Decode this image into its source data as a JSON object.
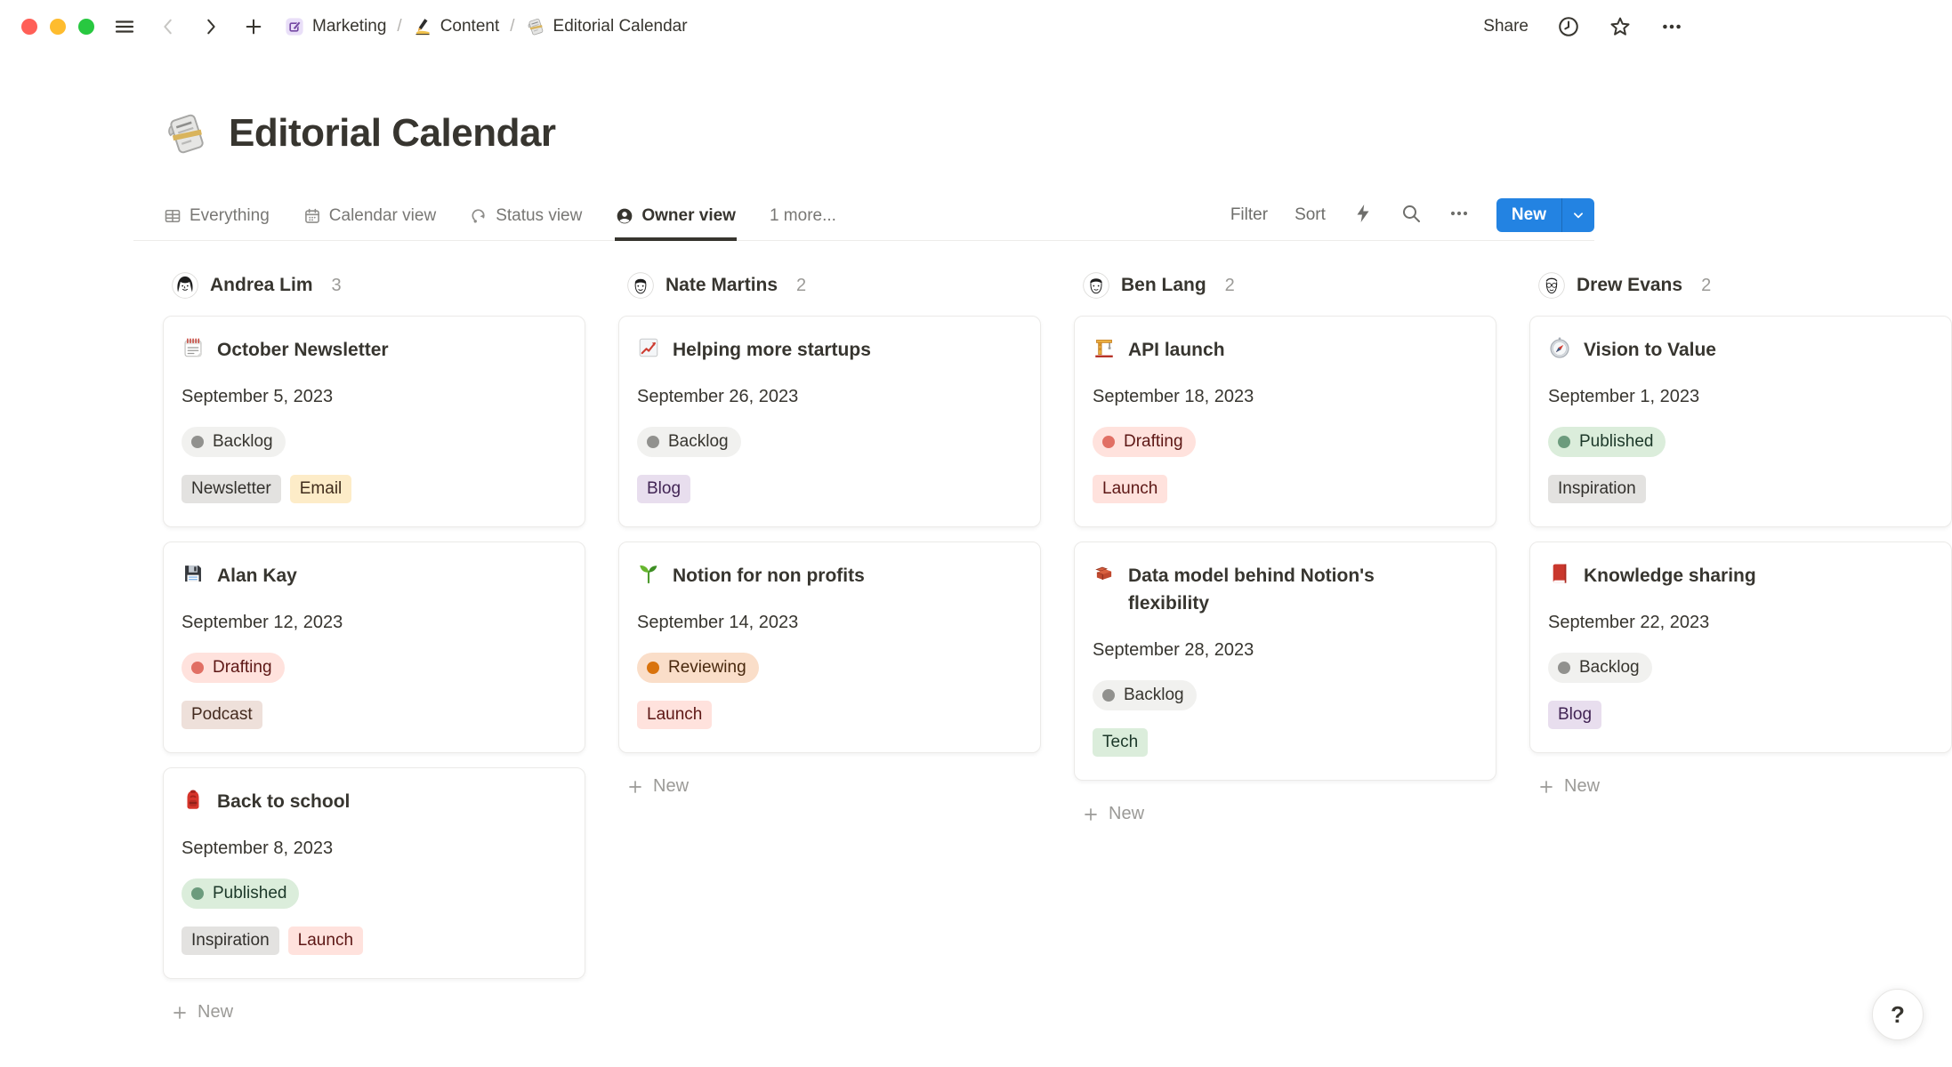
{
  "topbar": {
    "traffic_lights": [
      "close",
      "minimize",
      "zoom"
    ],
    "breadcrumb": {
      "separator": "/",
      "items": [
        {
          "icon": "compose",
          "label": "Marketing"
        },
        {
          "icon": "writing",
          "label": "Content"
        },
        {
          "icon": "newspaper",
          "label": "Editorial Calendar"
        }
      ]
    },
    "share_label": "Share"
  },
  "page": {
    "icon": "newspaper",
    "title": "Editorial Calendar"
  },
  "view_tabs": [
    {
      "icon": "table",
      "label": "Everything",
      "active": false
    },
    {
      "icon": "calendar",
      "label": "Calendar view",
      "active": false
    },
    {
      "icon": "status",
      "label": "Status view",
      "active": false
    },
    {
      "icon": "person",
      "label": "Owner view",
      "active": true
    },
    {
      "icon": null,
      "label": "1 more...",
      "active": false
    }
  ],
  "toolbar": {
    "filter_label": "Filter",
    "sort_label": "Sort",
    "new_label": "New"
  },
  "board": {
    "add_card_label": "New",
    "columns": [
      {
        "name": "Andrea Lim",
        "count": "3",
        "avatar": "andrea",
        "cards": [
          {
            "icon": "calendar-page",
            "title": "October Newsletter",
            "date": "September 5, 2023",
            "status": {
              "label": "Backlog",
              "color": "gray"
            },
            "tags": [
              {
                "label": "Newsletter",
                "color": "gray"
              },
              {
                "label": "Email",
                "color": "yellow"
              }
            ]
          },
          {
            "icon": "floppy",
            "title": "Alan Kay",
            "date": "September 12, 2023",
            "status": {
              "label": "Drafting",
              "color": "red"
            },
            "tags": [
              {
                "label": "Podcast",
                "color": "brown"
              }
            ]
          },
          {
            "icon": "backpack",
            "title": "Back to school",
            "date": "September 8, 2023",
            "status": {
              "label": "Published",
              "color": "green"
            },
            "tags": [
              {
                "label": "Inspiration",
                "color": "gray"
              },
              {
                "label": "Launch",
                "color": "red"
              }
            ]
          }
        ]
      },
      {
        "name": "Nate Martins",
        "count": "2",
        "avatar": "nate",
        "cards": [
          {
            "icon": "chart-up",
            "title": "Helping more startups",
            "date": "September 26, 2023",
            "status": {
              "label": "Backlog",
              "color": "gray"
            },
            "tags": [
              {
                "label": "Blog",
                "color": "purple"
              }
            ]
          },
          {
            "icon": "seedling",
            "title": "Notion for non profits",
            "date": "September 14, 2023",
            "status": {
              "label": "Reviewing",
              "color": "orange"
            },
            "tags": [
              {
                "label": "Launch",
                "color": "red"
              }
            ]
          }
        ]
      },
      {
        "name": "Ben Lang",
        "count": "2",
        "avatar": "ben",
        "cards": [
          {
            "icon": "crane",
            "title": "API launch",
            "date": "September 18, 2023",
            "status": {
              "label": "Drafting",
              "color": "red"
            },
            "tags": [
              {
                "label": "Launch",
                "color": "red"
              }
            ]
          },
          {
            "icon": "bricks",
            "title": "Data model behind Notion's flexibility",
            "date": "September 28, 2023",
            "status": {
              "label": "Backlog",
              "color": "gray"
            },
            "tags": [
              {
                "label": "Tech",
                "color": "green"
              }
            ]
          }
        ]
      },
      {
        "name": "Drew Evans",
        "count": "2",
        "avatar": "drew",
        "cards": [
          {
            "icon": "compass",
            "title": "Vision to Value",
            "date": "September 1, 2023",
            "status": {
              "label": "Published",
              "color": "green"
            },
            "tags": [
              {
                "label": "Inspiration",
                "color": "gray"
              }
            ]
          },
          {
            "icon": "red-book",
            "title": "Knowledge sharing",
            "date": "September 22, 2023",
            "status": {
              "label": "Backlog",
              "color": "gray"
            },
            "tags": [
              {
                "label": "Blog",
                "color": "purple"
              }
            ]
          }
        ]
      }
    ]
  },
  "help_label": "?",
  "colors": {
    "accent_blue": "#2383E2",
    "active_tab_underline": "#37352F",
    "status": {
      "gray": {
        "bg": "#F1F1EF",
        "dot": "#91918E",
        "text": "#37352F"
      },
      "red": {
        "bg": "#FFE2DD",
        "dot": "#E16F64",
        "text": "#5D1715"
      },
      "orange": {
        "bg": "#FADEC9",
        "dot": "#D9730D",
        "text": "#49290E"
      },
      "green": {
        "bg": "#DBEDDB",
        "dot": "#6C9B7D",
        "text": "#1C3829"
      }
    },
    "tags": {
      "gray": {
        "bg": "#E3E2E0",
        "text": "#32302C"
      },
      "yellow": {
        "bg": "#FDECC8",
        "text": "#402C1B"
      },
      "purple": {
        "bg": "#E8DEEE",
        "text": "#412454"
      },
      "brown": {
        "bg": "#EEE0DA",
        "text": "#442A1E"
      },
      "red": {
        "bg": "#FFE2DD",
        "text": "#5D1715"
      },
      "green": {
        "bg": "#DBEDDB",
        "text": "#1C3829"
      }
    }
  }
}
